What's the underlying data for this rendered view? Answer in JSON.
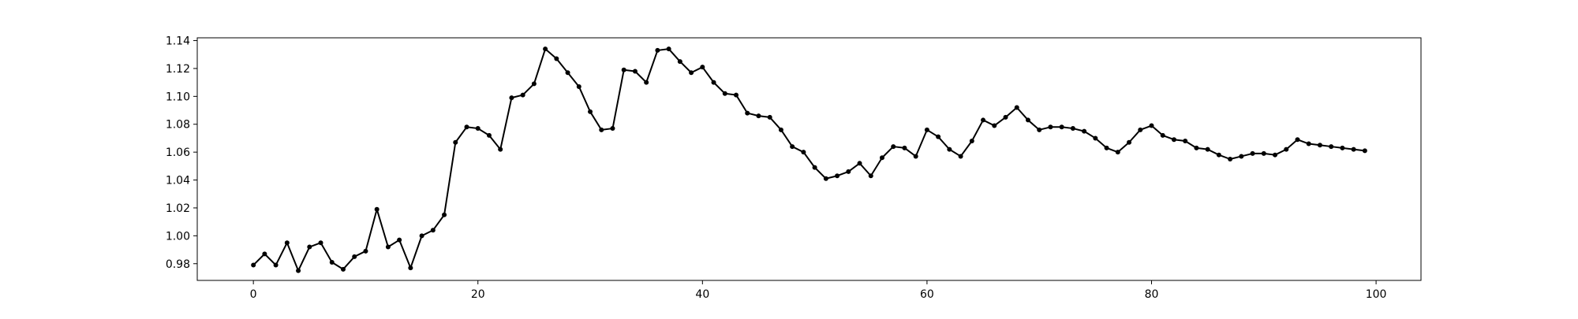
{
  "chart_data": {
    "type": "line",
    "title": "",
    "xlabel": "",
    "ylabel": "",
    "xlim": [
      -5,
      104
    ],
    "ylim": [
      0.968,
      1.142
    ],
    "xticks": [
      0,
      20,
      40,
      60,
      80,
      100
    ],
    "yticks": [
      0.98,
      1.0,
      1.02,
      1.04,
      1.06,
      1.08,
      1.1,
      1.12,
      1.14
    ],
    "grid": false,
    "colors": {
      "line": "#000000",
      "marker": "#000000",
      "frame": "#000000"
    },
    "series": [
      {
        "x": [
          0,
          1,
          2,
          3,
          4,
          5,
          6,
          7,
          8,
          9,
          10,
          11,
          12,
          13,
          14,
          15,
          16,
          17,
          18,
          19,
          20,
          21,
          22,
          23,
          24,
          25,
          26,
          27,
          28,
          29,
          30,
          31,
          32,
          33,
          34,
          35,
          36,
          37,
          38,
          39,
          40,
          41,
          42,
          43,
          44,
          45,
          46,
          47,
          48,
          49,
          50,
          51,
          52,
          53,
          54,
          55,
          56,
          57,
          58,
          59,
          60,
          61,
          62,
          63,
          64,
          65,
          66,
          67,
          68,
          69,
          70,
          71,
          72,
          73,
          74,
          75,
          76,
          77,
          78,
          79,
          80,
          81,
          82,
          83,
          84,
          85,
          86,
          87,
          88,
          89,
          90,
          91,
          92,
          93,
          94,
          95,
          96,
          97,
          98,
          99
        ],
        "y": [
          0.979,
          0.987,
          0.979,
          0.995,
          0.975,
          0.992,
          0.995,
          0.981,
          0.976,
          0.985,
          0.989,
          1.019,
          0.992,
          0.997,
          0.977,
          1.0,
          1.004,
          1.015,
          1.067,
          1.078,
          1.077,
          1.072,
          1.062,
          1.099,
          1.101,
          1.109,
          1.134,
          1.127,
          1.117,
          1.107,
          1.089,
          1.076,
          1.077,
          1.119,
          1.118,
          1.11,
          1.133,
          1.134,
          1.125,
          1.117,
          1.121,
          1.11,
          1.102,
          1.101,
          1.088,
          1.086,
          1.085,
          1.076,
          1.064,
          1.06,
          1.049,
          1.041,
          1.043,
          1.046,
          1.052,
          1.043,
          1.056,
          1.064,
          1.063,
          1.057,
          1.076,
          1.071,
          1.062,
          1.057,
          1.068,
          1.083,
          1.079,
          1.085,
          1.092,
          1.083,
          1.076,
          1.078,
          1.078,
          1.077,
          1.075,
          1.07,
          1.063,
          1.06,
          1.067,
          1.076,
          1.079,
          1.072,
          1.069,
          1.068,
          1.063,
          1.062,
          1.058,
          1.055,
          1.057,
          1.059,
          1.059,
          1.058,
          1.062,
          1.069,
          1.066,
          1.065,
          1.064,
          1.063,
          1.062,
          1.061
        ]
      }
    ]
  }
}
